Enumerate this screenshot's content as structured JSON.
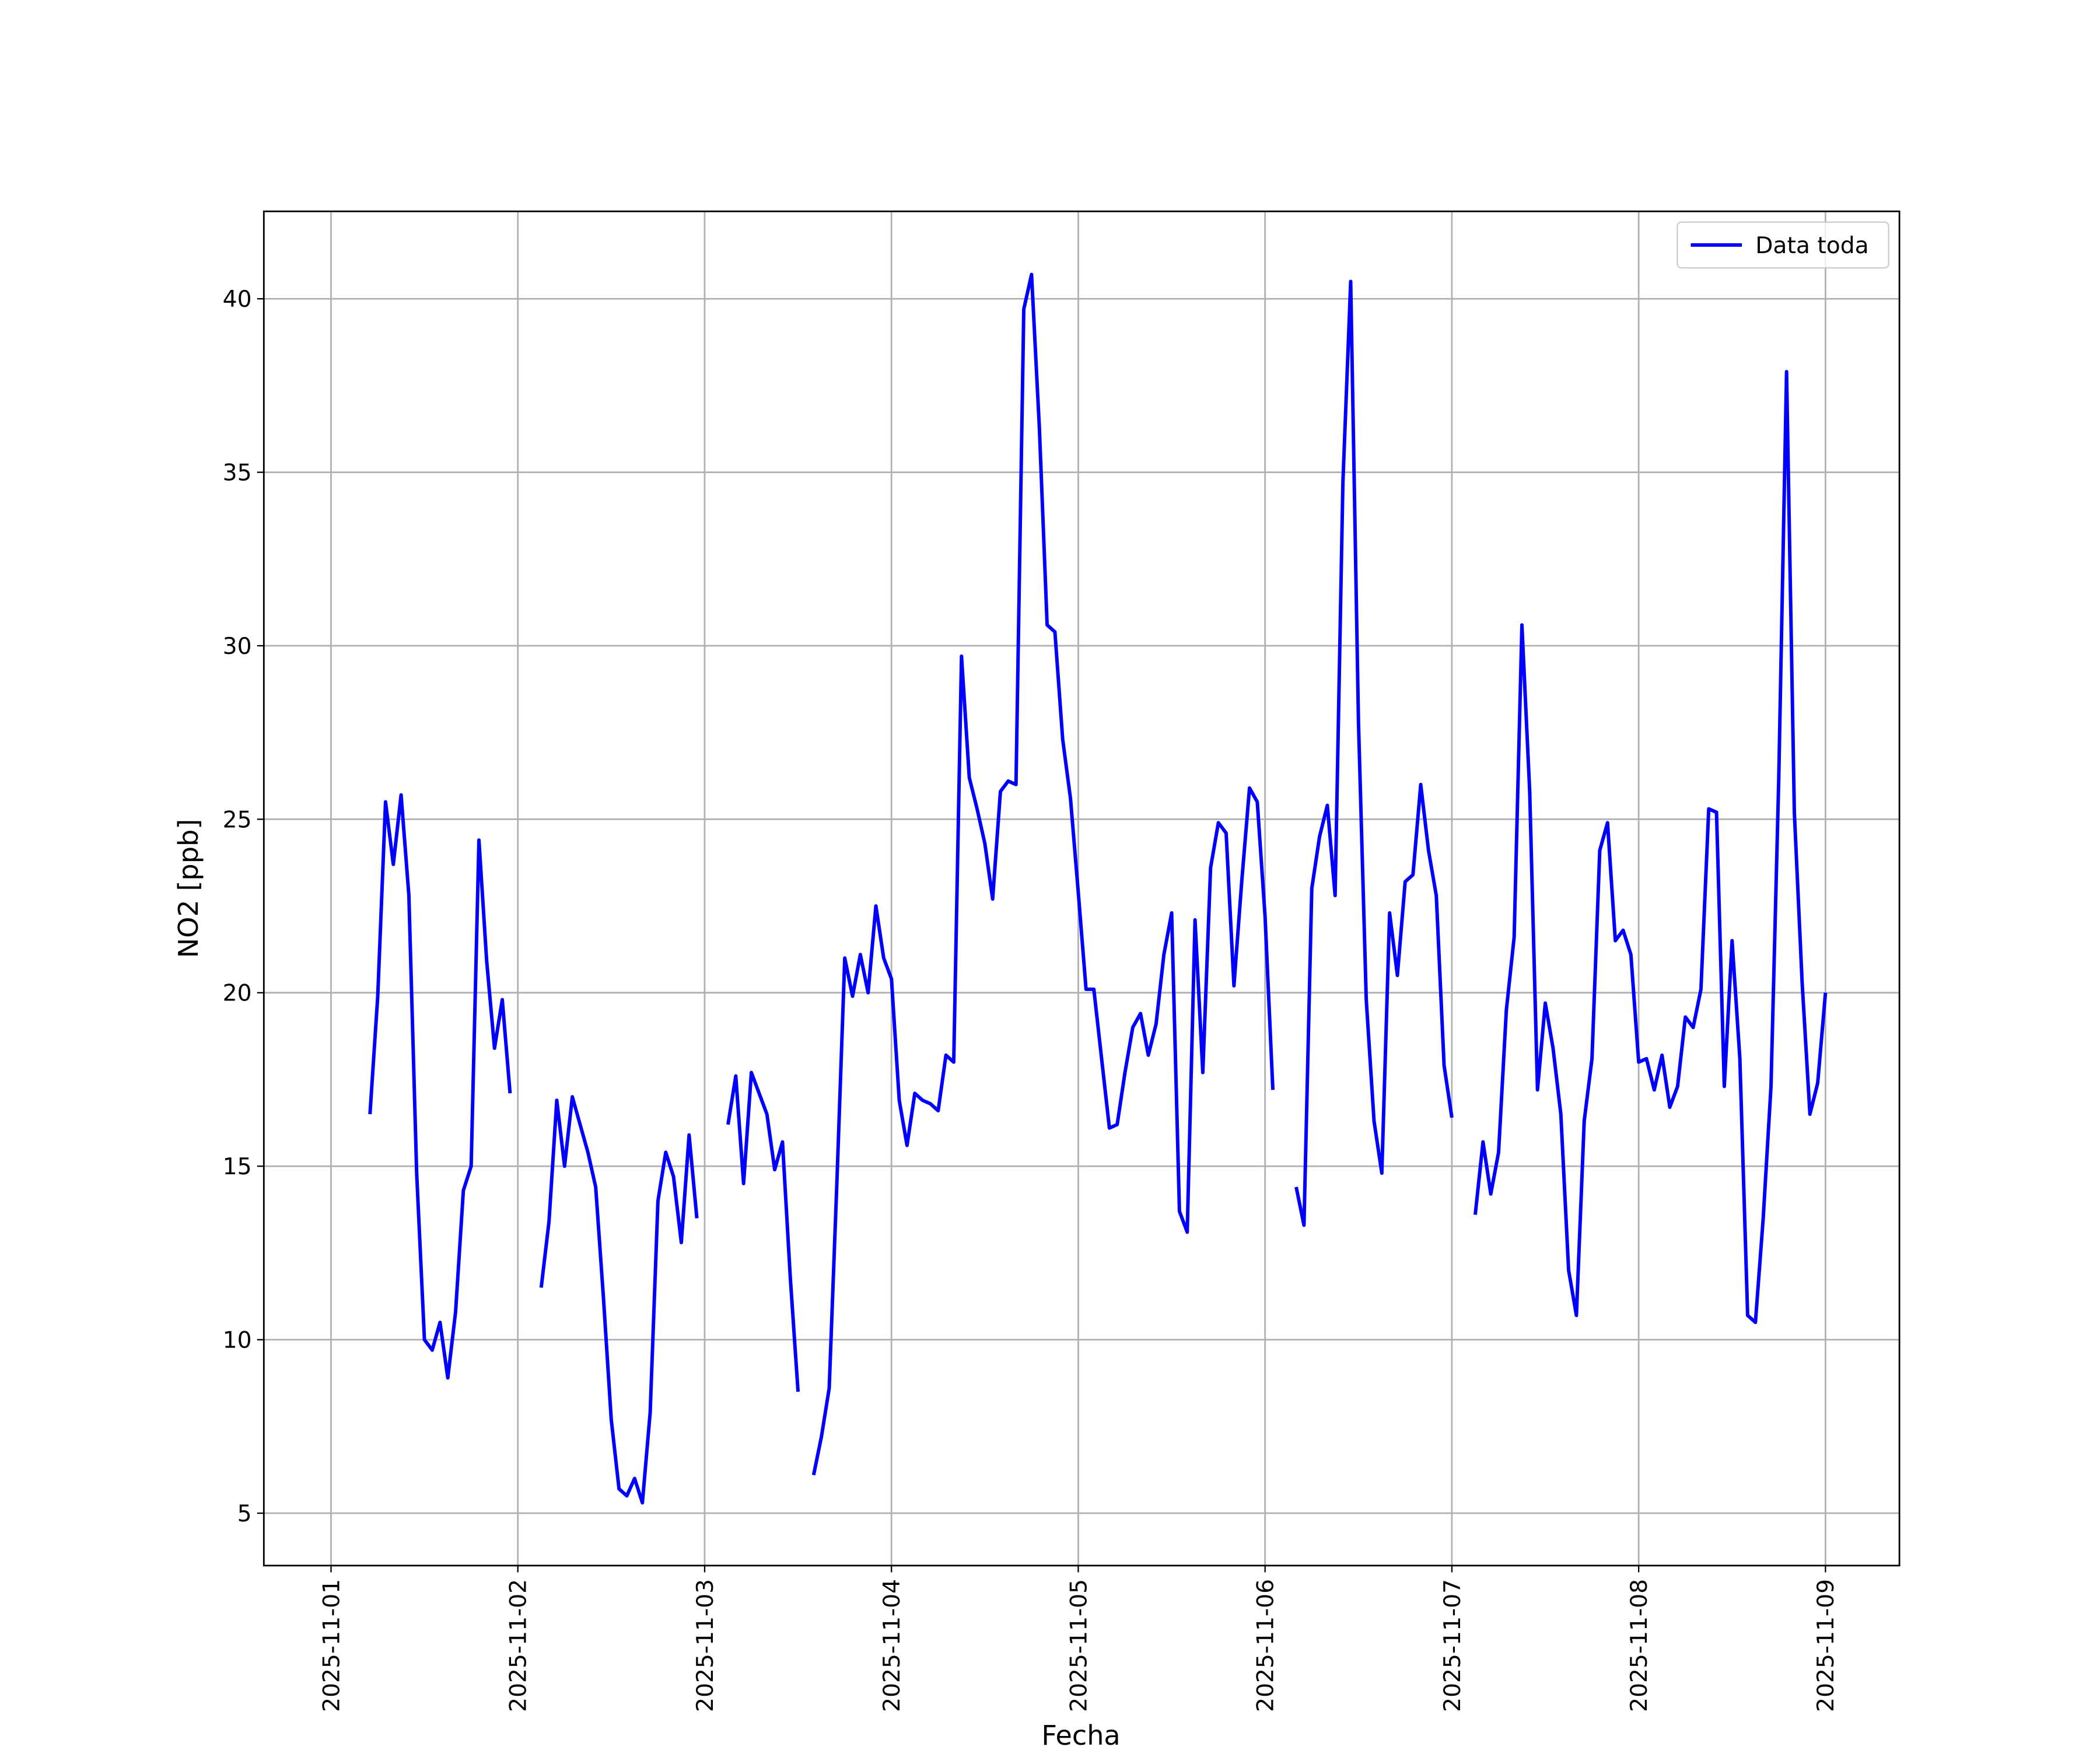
{
  "chart_data": {
    "type": "line",
    "xlabel": "Fecha",
    "ylabel": "NO2 [ppb]",
    "x": [
      "2025-11-01T05:00",
      "2025-11-01T06:00",
      "2025-11-01T07:00",
      "2025-11-01T08:00",
      "2025-11-01T09:00",
      "2025-11-01T10:00",
      "2025-11-01T11:00",
      "2025-11-01T12:00",
      "2025-11-01T13:00",
      "2025-11-01T14:00",
      "2025-11-01T15:00",
      "2025-11-01T16:00",
      "2025-11-01T17:00",
      "2025-11-01T18:00",
      "2025-11-01T19:00",
      "2025-11-01T20:00",
      "2025-11-01T21:00",
      "2025-11-01T22:00",
      "2025-11-01T23:00",
      "2025-11-02T00:00",
      "2025-11-02T03:00",
      "2025-11-02T04:00",
      "2025-11-02T05:00",
      "2025-11-02T06:00",
      "2025-11-02T07:00",
      "2025-11-02T08:00",
      "2025-11-02T09:00",
      "2025-11-02T10:00",
      "2025-11-02T11:00",
      "2025-11-02T12:00",
      "2025-11-02T13:00",
      "2025-11-02T14:00",
      "2025-11-02T15:00",
      "2025-11-02T16:00",
      "2025-11-02T17:00",
      "2025-11-02T18:00",
      "2025-11-02T19:00",
      "2025-11-02T20:00",
      "2025-11-02T21:00",
      "2025-11-02T22:00",
      "2025-11-02T23:00",
      "2025-11-03T00:00",
      "2025-11-03T03:00",
      "2025-11-03T04:00",
      "2025-11-03T05:00",
      "2025-11-03T06:00",
      "2025-11-03T07:00",
      "2025-11-03T08:00",
      "2025-11-03T09:00",
      "2025-11-03T10:00",
      "2025-11-03T11:00",
      "2025-11-03T12:00",
      "2025-11-03T13:00",
      "2025-11-03T14:00",
      "2025-11-03T15:00",
      "2025-11-03T16:00",
      "2025-11-03T17:00",
      "2025-11-03T18:00",
      "2025-11-03T19:00",
      "2025-11-03T20:00",
      "2025-11-03T21:00",
      "2025-11-03T22:00",
      "2025-11-03T23:00",
      "2025-11-04T00:00",
      "2025-11-04T01:00",
      "2025-11-04T02:00",
      "2025-11-04T03:00",
      "2025-11-04T04:00",
      "2025-11-04T05:00",
      "2025-11-04T06:00",
      "2025-11-04T07:00",
      "2025-11-04T08:00",
      "2025-11-04T09:00",
      "2025-11-04T10:00",
      "2025-11-04T11:00",
      "2025-11-04T12:00",
      "2025-11-04T13:00",
      "2025-11-04T14:00",
      "2025-11-04T15:00",
      "2025-11-04T16:00",
      "2025-11-04T17:00",
      "2025-11-04T18:00",
      "2025-11-04T19:00",
      "2025-11-04T20:00",
      "2025-11-04T21:00",
      "2025-11-04T22:00",
      "2025-11-04T23:00",
      "2025-11-05T00:00",
      "2025-11-05T01:00",
      "2025-11-05T02:00",
      "2025-11-05T03:00",
      "2025-11-05T04:00",
      "2025-11-05T05:00",
      "2025-11-05T06:00",
      "2025-11-05T07:00",
      "2025-11-05T08:00",
      "2025-11-05T09:00",
      "2025-11-05T10:00",
      "2025-11-05T11:00",
      "2025-11-05T12:00",
      "2025-11-05T13:00",
      "2025-11-05T14:00",
      "2025-11-05T15:00",
      "2025-11-05T16:00",
      "2025-11-05T17:00",
      "2025-11-05T18:00",
      "2025-11-05T19:00",
      "2025-11-05T20:00",
      "2025-11-05T21:00",
      "2025-11-05T22:00",
      "2025-11-05T23:00",
      "2025-11-06T00:00",
      "2025-11-06T01:00",
      "2025-11-06T02:00",
      "2025-11-06T04:00",
      "2025-11-06T05:00",
      "2025-11-06T06:00",
      "2025-11-06T07:00",
      "2025-11-06T08:00",
      "2025-11-06T09:00",
      "2025-11-06T10:00",
      "2025-11-06T11:00",
      "2025-11-06T12:00",
      "2025-11-06T13:00",
      "2025-11-06T14:00",
      "2025-11-06T15:00",
      "2025-11-06T16:00",
      "2025-11-06T17:00",
      "2025-11-06T18:00",
      "2025-11-06T19:00",
      "2025-11-06T20:00",
      "2025-11-06T21:00",
      "2025-11-06T22:00",
      "2025-11-06T23:00",
      "2025-11-07T00:00",
      "2025-11-07T01:00",
      "2025-11-07T03:00",
      "2025-11-07T04:00",
      "2025-11-07T05:00",
      "2025-11-07T06:00",
      "2025-11-07T07:00",
      "2025-11-07T08:00",
      "2025-11-07T09:00",
      "2025-11-07T10:00",
      "2025-11-07T11:00",
      "2025-11-07T12:00",
      "2025-11-07T13:00",
      "2025-11-07T14:00",
      "2025-11-07T15:00",
      "2025-11-07T16:00",
      "2025-11-07T17:00",
      "2025-11-07T18:00",
      "2025-11-07T19:00",
      "2025-11-07T20:00",
      "2025-11-07T21:00",
      "2025-11-07T22:00",
      "2025-11-07T23:00",
      "2025-11-08T00:00",
      "2025-11-08T01:00",
      "2025-11-08T02:00",
      "2025-11-08T03:00",
      "2025-11-08T04:00",
      "2025-11-08T05:00",
      "2025-11-08T06:00",
      "2025-11-08T07:00",
      "2025-11-08T08:00",
      "2025-11-08T09:00",
      "2025-11-08T10:00",
      "2025-11-08T11:00",
      "2025-11-08T12:00",
      "2025-11-08T13:00",
      "2025-11-08T14:00",
      "2025-11-08T15:00",
      "2025-11-08T16:00",
      "2025-11-08T17:00",
      "2025-11-08T18:00",
      "2025-11-08T19:00",
      "2025-11-08T20:00",
      "2025-11-08T21:00",
      "2025-11-08T22:00",
      "2025-11-08T23:00",
      "2025-11-09T00:00"
    ],
    "series": [
      {
        "name": "Data toda",
        "color": "#0000ff",
        "values": [
          16.5,
          19.9,
          25.5,
          23.7,
          25.7,
          22.8,
          14.8,
          10.0,
          9.7,
          10.5,
          8.9,
          10.8,
          14.3,
          15.0,
          24.4,
          20.9,
          18.4,
          19.8,
          17.1,
          null,
          11.5,
          13.4,
          16.9,
          15.0,
          17.0,
          16.2,
          15.4,
          14.4,
          11.2,
          7.7,
          5.7,
          5.5,
          6.0,
          5.3,
          7.9,
          14.0,
          15.4,
          14.7,
          12.8,
          15.9,
          13.5,
          null,
          16.2,
          17.6,
          14.5,
          17.7,
          17.1,
          16.5,
          14.9,
          15.7,
          11.8,
          8.5,
          null,
          6.1,
          7.2,
          8.6,
          14.6,
          21.0,
          19.9,
          21.1,
          20.0,
          22.5,
          21.0,
          20.4,
          16.9,
          15.6,
          17.1,
          16.9,
          16.8,
          16.6,
          18.2,
          18.0,
          29.7,
          26.2,
          25.3,
          24.3,
          22.7,
          25.8,
          26.1,
          26.0,
          39.7,
          40.7,
          36.3,
          30.6,
          30.4,
          27.3,
          25.6,
          22.9,
          20.1,
          20.1,
          18.1,
          16.1,
          16.2,
          17.7,
          19.0,
          19.4,
          18.2,
          19.1,
          21.1,
          22.3,
          13.7,
          13.1,
          22.1,
          17.7,
          23.6,
          24.9,
          24.6,
          20.2,
          23.2,
          25.9,
          25.5,
          22.2,
          17.2,
          null,
          14.4,
          13.3,
          23.0,
          24.5,
          25.4,
          22.8,
          34.7,
          40.5,
          27.8,
          19.8,
          16.3,
          14.8,
          22.3,
          20.5,
          23.2,
          23.4,
          26.0,
          24.1,
          22.8,
          17.9,
          16.4,
          null,
          13.6,
          15.7,
          14.2,
          15.4,
          19.5,
          21.6,
          30.6,
          25.8,
          17.2,
          19.7,
          18.4,
          16.5,
          12.0,
          10.7,
          16.3,
          18.1,
          24.1,
          24.9,
          21.5,
          21.8,
          21.1,
          18.0,
          18.1,
          17.2,
          18.2,
          16.7,
          17.3,
          19.3,
          19.0,
          20.1,
          25.3,
          25.2,
          17.3,
          21.5,
          18.1,
          10.7,
          10.5,
          13.5,
          17.3,
          26.2,
          37.9,
          25.2,
          20.3,
          16.5,
          17.4,
          20.0
        ]
      }
    ],
    "xlim": [
      "2025-10-31T15:22",
      "2025-11-09T09:30"
    ],
    "xticks": [
      "2025-11-01",
      "2025-11-02",
      "2025-11-03",
      "2025-11-04",
      "2025-11-05",
      "2025-11-06",
      "2025-11-07",
      "2025-11-08",
      "2025-11-09"
    ],
    "ylim": [
      3.49,
      42.52
    ],
    "yticks": [
      5,
      10,
      15,
      20,
      25,
      30,
      35,
      40
    ],
    "grid": true,
    "legend": "upper right"
  }
}
